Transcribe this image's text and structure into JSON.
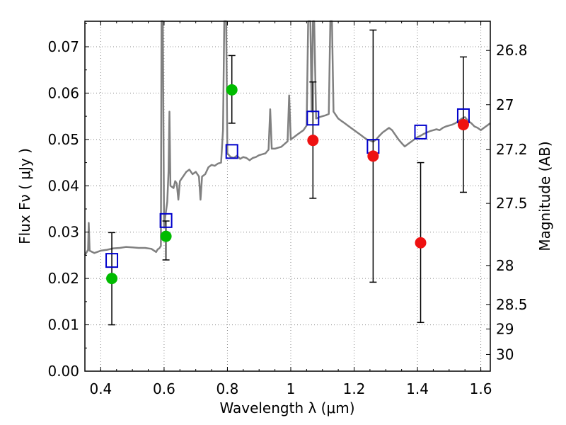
{
  "chart_data": {
    "type": "scatter",
    "xlabel": "Wavelength  λ (μm)",
    "ylabel": "Flux  Fν  ( μJy )",
    "ylabel_right": "Magnitude (AB)",
    "xlim": [
      0.35,
      1.63
    ],
    "ylim": [
      0.0,
      0.0755
    ],
    "grid": true,
    "x_ticks": [
      0.4,
      0.6,
      0.8,
      1.0,
      1.2,
      1.4,
      1.6
    ],
    "x_tick_labels": [
      "0.4",
      "0.6",
      "0.8",
      "1",
      "1.2",
      "1.4",
      "1.6"
    ],
    "y_ticks": [
      0.0,
      0.01,
      0.02,
      0.03,
      0.04,
      0.05,
      0.06,
      0.07
    ],
    "y_tick_labels": [
      "0.00",
      "0.01",
      "0.02",
      "0.03",
      "0.04",
      "0.05",
      "0.06",
      "0.07"
    ],
    "right_ticks": [
      {
        "label": "26.8",
        "flux": 0.0692
      },
      {
        "label": "27",
        "flux": 0.0575
      },
      {
        "label": "27.2",
        "flux": 0.0478
      },
      {
        "label": "27.5",
        "flux": 0.0362
      },
      {
        "label": "28",
        "flux": 0.0228
      },
      {
        "label": "28.5",
        "flux": 0.0144
      },
      {
        "label": "29",
        "flux": 0.0091
      },
      {
        "label": "30",
        "flux": 0.0036
      }
    ],
    "colors": {
      "spectrum": "#808080",
      "detection": "#00bb00",
      "measured": "#ee1111",
      "model": "#0000cc",
      "errorbar": "#000000",
      "grid": "#888888"
    },
    "series": [
      {
        "name": "",
        "role": "detection",
        "marker": "circle",
        "points": [
          {
            "x": 0.435,
            "y": 0.02,
            "err_lo": 0.01,
            "err_hi": 0.0299
          },
          {
            "x": 0.606,
            "y": 0.0291,
            "err_lo": 0.024,
            "err_hi": 0.0324
          },
          {
            "x": 0.814,
            "y": 0.0607,
            "err_lo": 0.0535,
            "err_hi": 0.0681
          }
        ]
      },
      {
        "name": "",
        "role": "measured",
        "marker": "circle",
        "points": [
          {
            "x": 1.07,
            "y": 0.0498,
            "err_lo": 0.0373,
            "err_hi": 0.0624
          },
          {
            "x": 1.26,
            "y": 0.0464,
            "err_lo": 0.0192,
            "err_hi": 0.0736
          },
          {
            "x": 1.41,
            "y": 0.0277,
            "err_lo": 0.0105,
            "err_hi": 0.045
          },
          {
            "x": 1.545,
            "y": 0.0532,
            "err_lo": 0.0386,
            "err_hi": 0.0678
          }
        ]
      },
      {
        "name": "",
        "role": "model",
        "marker": "square",
        "points": [
          {
            "x": 0.435,
            "y": 0.0239
          },
          {
            "x": 0.606,
            "y": 0.0325
          },
          {
            "x": 0.814,
            "y": 0.0474
          },
          {
            "x": 1.07,
            "y": 0.0546
          },
          {
            "x": 1.26,
            "y": 0.0485
          },
          {
            "x": 1.41,
            "y": 0.0516
          },
          {
            "x": 1.545,
            "y": 0.0551
          }
        ]
      },
      {
        "name": "",
        "role": "spectrum",
        "marker": "line",
        "points": [
          [
            0.35,
            0.025
          ],
          [
            0.36,
            0.0262
          ],
          [
            0.362,
            0.032
          ],
          [
            0.365,
            0.026
          ],
          [
            0.38,
            0.0255
          ],
          [
            0.4,
            0.026
          ],
          [
            0.42,
            0.0262
          ],
          [
            0.44,
            0.0265
          ],
          [
            0.46,
            0.0266
          ],
          [
            0.48,
            0.0268
          ],
          [
            0.5,
            0.0267
          ],
          [
            0.52,
            0.0266
          ],
          [
            0.54,
            0.0266
          ],
          [
            0.56,
            0.0264
          ],
          [
            0.575,
            0.0257
          ],
          [
            0.58,
            0.0263
          ],
          [
            0.585,
            0.0265
          ],
          [
            0.59,
            0.027
          ],
          [
            0.592,
            0.076
          ],
          [
            0.596,
            0.076
          ],
          [
            0.6,
            0.031
          ],
          [
            0.605,
            0.034
          ],
          [
            0.61,
            0.0365
          ],
          [
            0.614,
            0.043
          ],
          [
            0.617,
            0.056
          ],
          [
            0.62,
            0.04
          ],
          [
            0.63,
            0.0395
          ],
          [
            0.635,
            0.041
          ],
          [
            0.64,
            0.0405
          ],
          [
            0.645,
            0.037
          ],
          [
            0.65,
            0.041
          ],
          [
            0.66,
            0.042
          ],
          [
            0.67,
            0.043
          ],
          [
            0.68,
            0.0435
          ],
          [
            0.69,
            0.0425
          ],
          [
            0.7,
            0.043
          ],
          [
            0.71,
            0.042
          ],
          [
            0.715,
            0.037
          ],
          [
            0.72,
            0.042
          ],
          [
            0.73,
            0.0425
          ],
          [
            0.74,
            0.044
          ],
          [
            0.75,
            0.0445
          ],
          [
            0.76,
            0.0443
          ],
          [
            0.77,
            0.0448
          ],
          [
            0.78,
            0.045
          ],
          [
            0.786,
            0.052
          ],
          [
            0.79,
            0.076
          ],
          [
            0.796,
            0.076
          ],
          [
            0.8,
            0.047
          ],
          [
            0.81,
            0.0462
          ],
          [
            0.82,
            0.046
          ],
          [
            0.83,
            0.0465
          ],
          [
            0.84,
            0.0458
          ],
          [
            0.85,
            0.0462
          ],
          [
            0.86,
            0.046
          ],
          [
            0.87,
            0.0455
          ],
          [
            0.88,
            0.046
          ],
          [
            0.89,
            0.0462
          ],
          [
            0.9,
            0.0466
          ],
          [
            0.91,
            0.0468
          ],
          [
            0.92,
            0.047
          ],
          [
            0.93,
            0.0478
          ],
          [
            0.935,
            0.0565
          ],
          [
            0.94,
            0.048
          ],
          [
            0.95,
            0.048
          ],
          [
            0.96,
            0.0482
          ],
          [
            0.97,
            0.0484
          ],
          [
            0.98,
            0.049
          ],
          [
            0.99,
            0.0496
          ],
          [
            0.995,
            0.0595
          ],
          [
            1.0,
            0.05
          ],
          [
            1.01,
            0.0505
          ],
          [
            1.02,
            0.051
          ],
          [
            1.03,
            0.0515
          ],
          [
            1.04,
            0.052
          ],
          [
            1.05,
            0.053
          ],
          [
            1.055,
            0.076
          ],
          [
            1.062,
            0.076
          ],
          [
            1.066,
            0.056
          ],
          [
            1.07,
            0.076
          ],
          [
            1.074,
            0.076
          ],
          [
            1.08,
            0.0545
          ],
          [
            1.09,
            0.0548
          ],
          [
            1.1,
            0.055
          ],
          [
            1.11,
            0.0552
          ],
          [
            1.12,
            0.0555
          ],
          [
            1.125,
            0.076
          ],
          [
            1.13,
            0.076
          ],
          [
            1.135,
            0.056
          ],
          [
            1.15,
            0.0545
          ],
          [
            1.16,
            0.054
          ],
          [
            1.17,
            0.0535
          ],
          [
            1.18,
            0.053
          ],
          [
            1.19,
            0.0525
          ],
          [
            1.2,
            0.052
          ],
          [
            1.21,
            0.0515
          ],
          [
            1.22,
            0.051
          ],
          [
            1.23,
            0.0505
          ],
          [
            1.24,
            0.05
          ],
          [
            1.25,
            0.0498
          ],
          [
            1.26,
            0.0495
          ],
          [
            1.27,
            0.05
          ],
          [
            1.28,
            0.0508
          ],
          [
            1.29,
            0.0515
          ],
          [
            1.3,
            0.052
          ],
          [
            1.31,
            0.0525
          ],
          [
            1.32,
            0.052
          ],
          [
            1.33,
            0.051
          ],
          [
            1.34,
            0.05
          ],
          [
            1.35,
            0.0492
          ],
          [
            1.36,
            0.0485
          ],
          [
            1.37,
            0.049
          ],
          [
            1.38,
            0.0495
          ],
          [
            1.39,
            0.05
          ],
          [
            1.4,
            0.0505
          ],
          [
            1.41,
            0.0508
          ],
          [
            1.42,
            0.0512
          ],
          [
            1.43,
            0.0515
          ],
          [
            1.44,
            0.0518
          ],
          [
            1.45,
            0.052
          ],
          [
            1.46,
            0.0522
          ],
          [
            1.47,
            0.052
          ],
          [
            1.48,
            0.0525
          ],
          [
            1.49,
            0.0528
          ],
          [
            1.5,
            0.053
          ],
          [
            1.51,
            0.0532
          ],
          [
            1.52,
            0.0535
          ],
          [
            1.53,
            0.054
          ],
          [
            1.54,
            0.0545
          ],
          [
            1.55,
            0.0548
          ],
          [
            1.56,
            0.054
          ],
          [
            1.57,
            0.0535
          ],
          [
            1.58,
            0.0528
          ],
          [
            1.59,
            0.0525
          ],
          [
            1.6,
            0.052
          ],
          [
            1.61,
            0.0525
          ],
          [
            1.62,
            0.053
          ],
          [
            1.63,
            0.0535
          ]
        ]
      }
    ]
  }
}
